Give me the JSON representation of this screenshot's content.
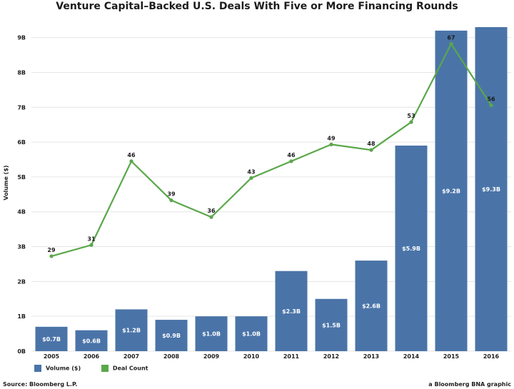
{
  "title": "Venture Capital–Backed U.S. Deals With Five or More Financing Rounds",
  "source": "Source: Bloomberg L.P.",
  "credit": "a Bloomberg BNA graphic",
  "colors": {
    "bar": "#4a74a8",
    "line": "#5aa74a",
    "grid": "#e6e6e6"
  },
  "chart_data": {
    "type": "bar",
    "categories": [
      "2005",
      "2006",
      "2007",
      "2008",
      "2009",
      "2010",
      "2011",
      "2012",
      "2013",
      "2014",
      "2015",
      "2016"
    ],
    "ylabel": "Volume ($)",
    "ylim": [
      0,
      9.3
    ],
    "yticks": [
      0,
      1,
      2,
      3,
      4,
      5,
      6,
      7,
      8,
      9
    ],
    "ytick_labels": [
      "0B",
      "1B",
      "2B",
      "3B",
      "4B",
      "5B",
      "6B",
      "7B",
      "8B",
      "9B"
    ],
    "series": [
      {
        "name": "Volume ($)",
        "type": "bar",
        "values": [
          0.7,
          0.6,
          1.2,
          0.9,
          1.0,
          1.0,
          2.3,
          1.5,
          2.6,
          5.9,
          9.2,
          9.3
        ],
        "labels": [
          "$0.7B",
          "$0.6B",
          "$1.2B",
          "$0.9B",
          "$1.0B",
          "$1.0B",
          "$2.3B",
          "$1.5B",
          "$2.6B",
          "$5.9B",
          "$9.2B",
          "$9.3B"
        ]
      },
      {
        "name": "Deal Count",
        "type": "line",
        "values": [
          29,
          31,
          46,
          39,
          36,
          43,
          46,
          49,
          48,
          53,
          67,
          56
        ]
      }
    ],
    "secondary_ylim": [
      12,
      70
    ]
  }
}
